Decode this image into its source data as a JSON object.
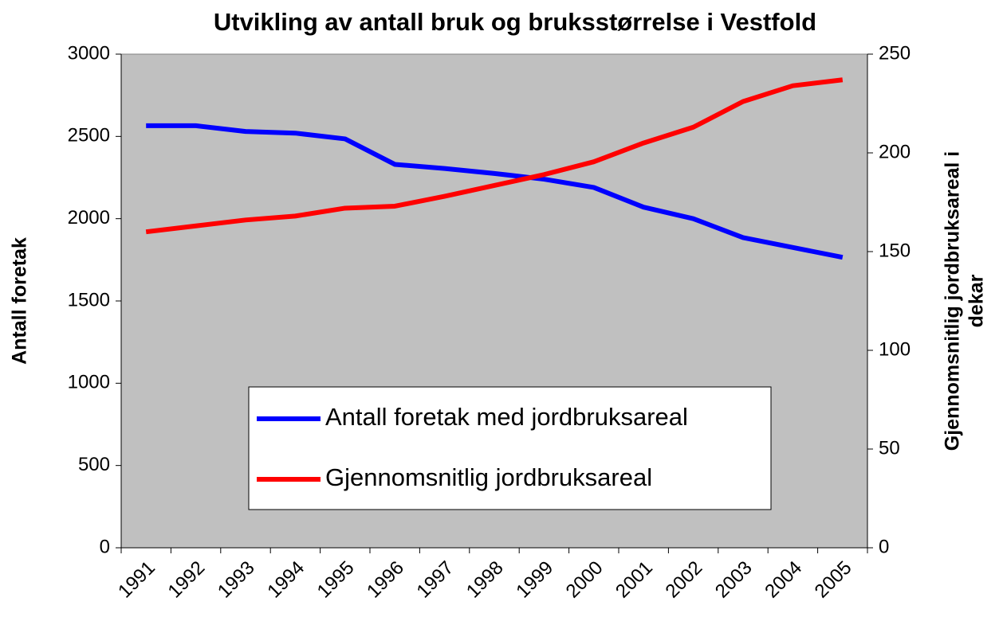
{
  "chart_data": {
    "type": "line",
    "title": "Utvikling av antall bruk og bruksstørrelse i Vestfold",
    "ylabel": "Antall foretak",
    "y2label": [
      "Gjennomsnitlig jordbruksareal i",
      "dekar"
    ],
    "categories": [
      "1991",
      "1992",
      "1993",
      "1994",
      "1995",
      "1996",
      "1997",
      "1998",
      "1999",
      "2000",
      "2001",
      "2002",
      "2003",
      "2004",
      "2005"
    ],
    "series": [
      {
        "name": "Antall foretak med jordbruksareal",
        "color": "#0000ff",
        "axis": "y",
        "values": [
          2565,
          2565,
          2530,
          2520,
          2485,
          2330,
          2305,
          2275,
          2240,
          2190,
          2070,
          2000,
          1885,
          1825,
          1765
        ]
      },
      {
        "name": "Gjennomsnitlig jordbruksareal",
        "color": "#ff0000",
        "axis": "y2",
        "values": [
          160,
          163,
          166,
          168,
          172,
          173,
          178,
          183.5,
          189,
          195.5,
          205,
          213,
          226,
          234,
          237
        ]
      }
    ],
    "ylim": [
      0,
      3000
    ],
    "yticks": [
      0,
      500,
      1000,
      1500,
      2000,
      2500,
      3000
    ],
    "y2lim": [
      0,
      250
    ],
    "y2ticks": [
      0,
      50,
      100,
      150,
      200,
      250
    ],
    "background": "#c0c0c0"
  }
}
